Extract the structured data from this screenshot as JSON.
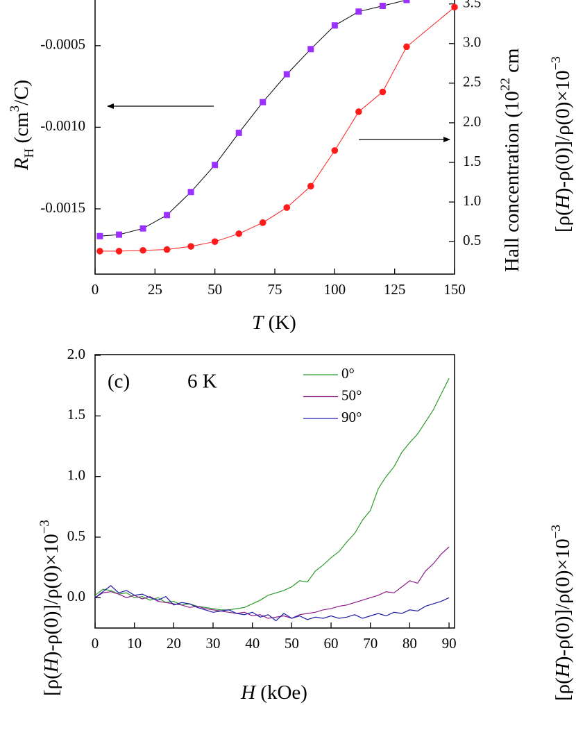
{
  "chart_data": [
    {
      "type": "line",
      "xlabel": [
        {
          "text": "T",
          "style": "italic"
        },
        {
          "text": " (K)"
        }
      ],
      "ylabel": [
        {
          "text": "R",
          "style": "italic"
        },
        {
          "text": "H",
          "style": "sub"
        },
        {
          "text": " (cm"
        },
        {
          "text": "3",
          "style": "sup"
        },
        {
          "text": "/C)"
        }
      ],
      "y2label": [
        {
          "text": "Hall concentration (10"
        },
        {
          "text": "22",
          "style": "sup"
        },
        {
          "text": " cm"
        }
      ],
      "xlim": [
        0,
        150
      ],
      "xticks": [
        0,
        25,
        50,
        75,
        100,
        125,
        150
      ],
      "ylim": [
        -0.0019,
        -0.00022
      ],
      "yticks": [
        -0.0005,
        {
          "value": -0.001,
          "label": "-0.0010"
        },
        -0.0015
      ],
      "y2lim": [
        0.09,
        3.55
      ],
      "y2ticks": [
        0.5,
        {
          "value": 1,
          "label": "1.0"
        },
        1.5,
        {
          "value": 2,
          "label": "2.0"
        },
        2.5,
        {
          "value": 3,
          "label": "3.0"
        },
        3.5
      ],
      "series": [
        {
          "color": "#9b30ff",
          "line_color": "#000000",
          "marker": "square",
          "x": [
            2,
            10,
            20,
            30,
            40,
            50,
            60,
            70,
            80,
            90,
            100,
            110,
            120,
            130
          ],
          "values": [
            -0.001667,
            -0.001658,
            -0.00162,
            -0.001538,
            -0.001397,
            -0.001231,
            -0.001034,
            -0.000846,
            -0.000675,
            -0.000521,
            -0.000376,
            -0.000291,
            -0.000256,
            -0.00022
          ]
        },
        {
          "color": "#ff1a1a",
          "line_color": "#ff1a1a",
          "marker": "circle",
          "axis": "y2",
          "x": [
            2,
            10,
            20,
            30,
            40,
            50,
            60,
            70,
            80,
            90,
            100,
            110,
            120,
            130,
            150
          ],
          "values": [
            0.38,
            0.38,
            0.39,
            0.4,
            0.44,
            0.5,
            0.6,
            0.74,
            0.93,
            1.2,
            1.65,
            2.14,
            2.39,
            2.96,
            3.46
          ]
        }
      ]
    },
    {
      "type": "line",
      "xlabel": [
        {
          "text": "H",
          "style": "italic"
        },
        {
          "text": " (kOe)"
        }
      ],
      "ylabel": [
        {
          "text": "[ρ("
        },
        {
          "text": "H",
          "style": "italic"
        },
        {
          "text": ")-ρ(0)]/ρ(0)×10"
        },
        {
          "text": "−3",
          "style": "sup"
        }
      ],
      "annotations": [
        "(c)",
        "6 K"
      ],
      "legend": "upper right",
      "xlim": [
        0,
        91.4
      ],
      "xticks": [
        0,
        10,
        20,
        30,
        40,
        50,
        60,
        70,
        80,
        90
      ],
      "ylim": [
        -0.25,
        2.0
      ],
      "yticks": [
        {
          "value": 0,
          "label": "0.0"
        },
        0.5,
        {
          "value": 1,
          "label": "1.0"
        },
        1.5,
        {
          "value": 2,
          "label": "2.0"
        }
      ],
      "x": [
        0,
        2,
        4,
        6,
        8,
        10,
        12,
        14,
        16,
        18,
        20,
        22,
        24,
        26,
        28,
        30,
        32,
        34,
        36,
        38,
        40,
        42,
        44,
        46,
        48,
        50,
        52,
        54,
        56,
        58,
        60,
        62,
        64,
        66,
        68,
        70,
        72,
        74,
        76,
        78,
        80,
        82,
        84,
        86,
        88,
        90
      ],
      "series": [
        {
          "name": "0°",
          "color": "#2a9a2a",
          "values": [
            0.02,
            0.07,
            0.06,
            0.03,
            0.04,
            0.0,
            0.01,
            -0.02,
            0.0,
            -0.04,
            -0.03,
            -0.06,
            -0.05,
            -0.07,
            -0.08,
            -0.09,
            -0.1,
            -0.1,
            -0.09,
            -0.08,
            -0.05,
            -0.02,
            0.02,
            0.04,
            0.06,
            0.09,
            0.14,
            0.13,
            0.22,
            0.27,
            0.33,
            0.38,
            0.46,
            0.53,
            0.64,
            0.72,
            0.9,
            1.0,
            1.08,
            1.2,
            1.28,
            1.35,
            1.45,
            1.55,
            1.68,
            1.81
          ]
        },
        {
          "name": "50°",
          "color": "#8b1a8b",
          "values": [
            0.0,
            0.04,
            0.05,
            0.03,
            0.0,
            0.02,
            -0.01,
            0.01,
            -0.03,
            -0.04,
            -0.05,
            -0.06,
            -0.08,
            -0.07,
            -0.09,
            -0.1,
            -0.11,
            -0.12,
            -0.13,
            -0.12,
            -0.15,
            -0.14,
            -0.17,
            -0.16,
            -0.15,
            -0.17,
            -0.14,
            -0.13,
            -0.12,
            -0.1,
            -0.09,
            -0.07,
            -0.06,
            -0.04,
            -0.02,
            0.0,
            0.02,
            0.05,
            0.04,
            0.09,
            0.14,
            0.12,
            0.22,
            0.28,
            0.36,
            0.42
          ]
        },
        {
          "name": "90°",
          "color": "#1a1aa6",
          "values": [
            0.0,
            0.05,
            0.1,
            0.04,
            0.06,
            0.02,
            0.03,
            0.0,
            -0.02,
            0.01,
            -0.06,
            -0.04,
            -0.05,
            -0.08,
            -0.1,
            -0.12,
            -0.11,
            -0.1,
            -0.13,
            -0.14,
            -0.12,
            -0.16,
            -0.14,
            -0.19,
            -0.13,
            -0.17,
            -0.15,
            -0.18,
            -0.16,
            -0.17,
            -0.15,
            -0.17,
            -0.16,
            -0.14,
            -0.17,
            -0.15,
            -0.13,
            -0.15,
            -0.12,
            -0.13,
            -0.1,
            -0.11,
            -0.07,
            -0.05,
            -0.03,
            0.0
          ]
        }
      ]
    }
  ],
  "partial_panels": [
    [
      {
        "text": "[ρ("
      },
      {
        "text": "H",
        "style": "italic"
      },
      {
        "text": ")-ρ(0)]/ρ(0)×10"
      },
      {
        "text": "−3",
        "style": "sup"
      }
    ],
    [
      {
        "text": "[ρ("
      },
      {
        "text": "H",
        "style": "italic"
      },
      {
        "text": ")-ρ(0)]/ρ(0)×10"
      },
      {
        "text": "−3",
        "style": "sup"
      }
    ]
  ]
}
